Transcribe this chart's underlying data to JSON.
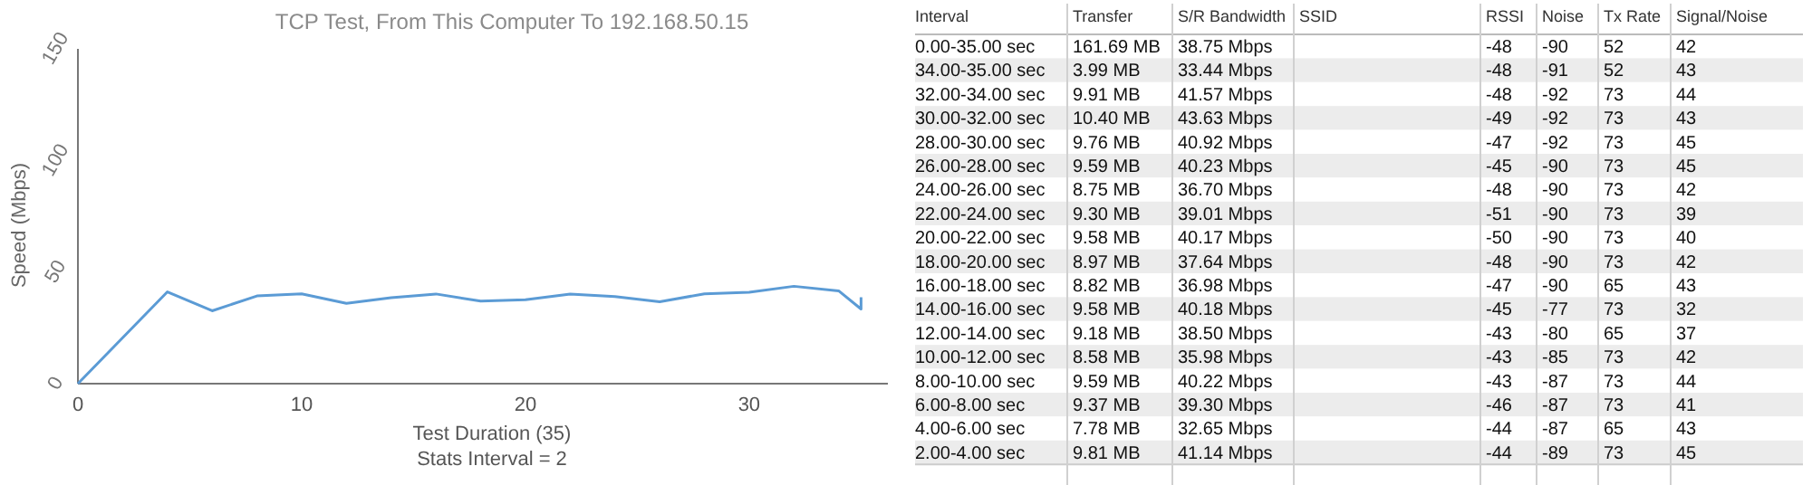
{
  "chart_data": [
    {
      "type": "line",
      "title": "TCP Test,  From This Computer To 192.168.50.15",
      "xlabel": "Test Duration (35)",
      "ylabel": "Speed (Mbps)",
      "annotations": [
        "Stats Interval = 2"
      ],
      "x": [
        0,
        4,
        6,
        8,
        10,
        12,
        14,
        16,
        18,
        20,
        22,
        24,
        26,
        28,
        30,
        32,
        34,
        35,
        35
      ],
      "series": [
        {
          "color": "#5b9bd5",
          "values": [
            0,
            41.14,
            32.65,
            39.3,
            40.22,
            35.98,
            38.5,
            40.18,
            36.98,
            37.64,
            40.17,
            39.01,
            36.7,
            40.23,
            40.92,
            43.63,
            41.57,
            33.44,
            38.75
          ]
        }
      ],
      "xlim": [
        0,
        36.2
      ],
      "xticks": [
        0,
        10,
        20,
        30
      ],
      "ylim": [
        0,
        150
      ],
      "yticks": [
        0,
        50,
        100,
        150
      ],
      "grid": false,
      "marker": "none",
      "line_style": "solid"
    },
    {
      "type": "other",
      "categories": [
        "Interval",
        "Transfer",
        "S/R Bandwidth",
        "SSID",
        "RSSI",
        "Noise",
        "Tx Rate",
        "Signal/Noise"
      ],
      "cell_labels": [
        [
          "0.00-35.00 sec",
          "161.69 MB",
          "38.75 Mbps",
          null,
          "-48",
          "-90",
          "52",
          "42"
        ],
        [
          "34.00-35.00 sec",
          "3.99 MB",
          "33.44 Mbps",
          null,
          "-48",
          "-91",
          "52",
          "43"
        ],
        [
          "32.00-34.00 sec",
          "9.91 MB",
          "41.57 Mbps",
          null,
          "-48",
          "-92",
          "73",
          "44"
        ],
        [
          "30.00-32.00 sec",
          "10.40 MB",
          "43.63 Mbps",
          null,
          "-49",
          "-92",
          "73",
          "43"
        ],
        [
          "28.00-30.00 sec",
          "9.76 MB",
          "40.92 Mbps",
          null,
          "-47",
          "-92",
          "73",
          "45"
        ],
        [
          "26.00-28.00 sec",
          "9.59 MB",
          "40.23 Mbps",
          null,
          "-45",
          "-90",
          "73",
          "45"
        ],
        [
          "24.00-26.00 sec",
          "8.75 MB",
          "36.70 Mbps",
          null,
          "-48",
          "-90",
          "73",
          "42"
        ],
        [
          "22.00-24.00 sec",
          "9.30 MB",
          "39.01 Mbps",
          null,
          "-51",
          "-90",
          "73",
          "39"
        ],
        [
          "20.00-22.00 sec",
          "9.58 MB",
          "40.17 Mbps",
          null,
          "-50",
          "-90",
          "73",
          "40"
        ],
        [
          "18.00-20.00 sec",
          "8.97 MB",
          "37.64 Mbps",
          null,
          "-48",
          "-90",
          "73",
          "42"
        ],
        [
          "16.00-18.00 sec",
          "8.82 MB",
          "36.98 Mbps",
          null,
          "-47",
          "-90",
          "65",
          "43"
        ],
        [
          "14.00-16.00 sec",
          "9.58 MB",
          "40.18 Mbps",
          null,
          "-45",
          "-77",
          "73",
          "32"
        ],
        [
          "12.00-14.00 sec",
          "9.18 MB",
          "38.50 Mbps",
          null,
          "-43",
          "-80",
          "65",
          "37"
        ],
        [
          "10.00-12.00 sec",
          "8.58 MB",
          "35.98 Mbps",
          null,
          "-43",
          "-85",
          "73",
          "42"
        ],
        [
          "8.00-10.00 sec",
          "9.59 MB",
          "40.22 Mbps",
          null,
          "-43",
          "-87",
          "73",
          "44"
        ],
        [
          "6.00-8.00 sec",
          "9.37 MB",
          "39.30 Mbps",
          null,
          "-46",
          "-87",
          "73",
          "41"
        ],
        [
          "4.00-6.00 sec",
          "7.78 MB",
          "32.65 Mbps",
          null,
          "-44",
          "-87",
          "65",
          "43"
        ],
        [
          "2.00-4.00 sec",
          "9.81 MB",
          "41.14 Mbps",
          null,
          "-44",
          "-89",
          "73",
          "45"
        ]
      ]
    }
  ]
}
